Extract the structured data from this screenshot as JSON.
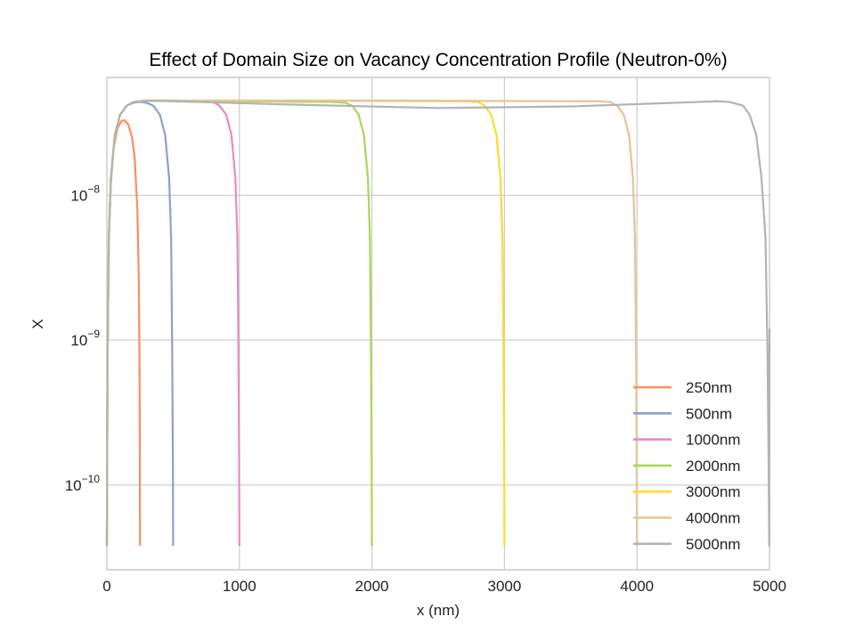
{
  "chart_data": {
    "type": "line",
    "title": "Effect of Domain Size on Vacancy Concentration Profile (Neutron-0%)",
    "xlabel": "x (nm)",
    "ylabel": "X",
    "xscale": "linear",
    "yscale": "log",
    "xlim": [
      0,
      5000
    ],
    "ylim": [
      2.6e-11,
      6.5e-08
    ],
    "xticks": [
      0,
      1000,
      2000,
      3000,
      4000,
      5000
    ],
    "xtick_labels": [
      "0",
      "1000",
      "2000",
      "3000",
      "4000",
      "5000"
    ],
    "yticks": [
      1e-10,
      1e-09,
      1e-08
    ],
    "ytick_labels": [
      {
        "base": "10",
        "exp": "−10"
      },
      {
        "base": "10",
        "exp": "−9"
      },
      {
        "base": "10",
        "exp": "−8"
      }
    ],
    "grid": true,
    "legend_position": "lower-right",
    "series": [
      {
        "name": "250nm",
        "color": "#fc8d62",
        "x": [
          0,
          5,
          15,
          30,
          50,
          80,
          110,
          130,
          160,
          190,
          210,
          230,
          240,
          246,
          249,
          250
        ],
        "y": [
          3.8e-11,
          8e-10,
          5e-09,
          1.2e-08,
          2.1e-08,
          2.9e-08,
          3.25e-08,
          3.3e-08,
          3.1e-08,
          2.5e-08,
          1.8e-08,
          8e-09,
          3e-09,
          8e-10,
          1.5e-10,
          3.8e-11
        ]
      },
      {
        "name": "500nm",
        "color": "#8da0cb",
        "x": [
          0,
          5,
          15,
          30,
          60,
          100,
          150,
          200,
          250,
          300,
          350,
          400,
          440,
          470,
          485,
          493,
          498,
          500
        ],
        "y": [
          3.8e-11,
          8e-10,
          5e-09,
          1.3e-08,
          2.6e-08,
          3.6e-08,
          4.15e-08,
          4.35e-08,
          4.4e-08,
          4.35e-08,
          4.15e-08,
          3.6e-08,
          2.6e-08,
          1.3e-08,
          5e-09,
          8e-10,
          1.5e-10,
          3.8e-11
        ]
      },
      {
        "name": "1000nm",
        "color": "#e78ac3",
        "x": [
          0,
          5,
          15,
          30,
          60,
          100,
          150,
          200,
          300,
          500,
          700,
          800,
          850,
          900,
          940,
          970,
          985,
          993,
          998,
          1000
        ],
        "y": [
          3.8e-11,
          8e-10,
          5e-09,
          1.3e-08,
          2.6e-08,
          3.6e-08,
          4.15e-08,
          4.4e-08,
          4.5e-08,
          4.5e-08,
          4.45e-08,
          4.4e-08,
          4.15e-08,
          3.6e-08,
          2.6e-08,
          1.3e-08,
          5e-09,
          8e-10,
          1.5e-10,
          3.8e-11
        ]
      },
      {
        "name": "2000nm",
        "color": "#a6d854",
        "x": [
          0,
          5,
          15,
          30,
          60,
          100,
          150,
          200,
          300,
          1000,
          1700,
          1800,
          1850,
          1900,
          1940,
          1970,
          1985,
          1993,
          1998,
          2000
        ],
        "y": [
          3.8e-11,
          8e-10,
          5e-09,
          1.3e-08,
          2.6e-08,
          3.6e-08,
          4.15e-08,
          4.4e-08,
          4.5e-08,
          4.45e-08,
          4.4e-08,
          4.35e-08,
          4.15e-08,
          3.6e-08,
          2.6e-08,
          1.3e-08,
          5e-09,
          8e-10,
          1.5e-10,
          3.8e-11
        ]
      },
      {
        "name": "3000nm",
        "color": "#ffd92f",
        "x": [
          0,
          5,
          15,
          30,
          60,
          100,
          150,
          200,
          300,
          1500,
          2700,
          2800,
          2850,
          2900,
          2940,
          2970,
          2985,
          2993,
          2998,
          3000
        ],
        "y": [
          3.8e-11,
          8e-10,
          5e-09,
          1.3e-08,
          2.6e-08,
          3.6e-08,
          4.15e-08,
          4.4e-08,
          4.5e-08,
          4.5e-08,
          4.45e-08,
          4.4e-08,
          4.15e-08,
          3.6e-08,
          2.6e-08,
          1.3e-08,
          5e-09,
          8e-10,
          1.5e-10,
          3.8e-11
        ]
      },
      {
        "name": "4000nm",
        "color": "#e5c494",
        "x": [
          0,
          5,
          15,
          30,
          60,
          100,
          150,
          200,
          300,
          2000,
          3700,
          3800,
          3850,
          3900,
          3940,
          3970,
          3985,
          3993,
          3998,
          4000
        ],
        "y": [
          3.8e-11,
          8e-10,
          5e-09,
          1.3e-08,
          2.6e-08,
          3.6e-08,
          4.15e-08,
          4.4e-08,
          4.5e-08,
          4.5e-08,
          4.45e-08,
          4.4e-08,
          4.15e-08,
          3.6e-08,
          2.6e-08,
          1.3e-08,
          5e-09,
          8e-10,
          1.5e-10,
          3.8e-11
        ]
      },
      {
        "name": "5000nm",
        "color": "#b3b3b3",
        "x": [
          0,
          5,
          15,
          30,
          60,
          100,
          150,
          200,
          300,
          500,
          1500,
          2500,
          3500,
          4300,
          4600,
          4700,
          4800,
          4850,
          4900,
          4940,
          4970,
          4985,
          4993,
          4998,
          5000
        ],
        "y": [
          3.8e-11,
          8e-10,
          5e-09,
          1.3e-08,
          2.6e-08,
          3.6e-08,
          4.15e-08,
          4.4e-08,
          4.5e-08,
          4.45e-08,
          4.2e-08,
          4e-08,
          4.1e-08,
          4.35e-08,
          4.45e-08,
          4.4e-08,
          4.15e-08,
          3.6e-08,
          2.6e-08,
          1.3e-08,
          5e-09,
          8e-10,
          1.5e-10,
          3.8e-11,
          1.2e-09
        ]
      }
    ]
  }
}
